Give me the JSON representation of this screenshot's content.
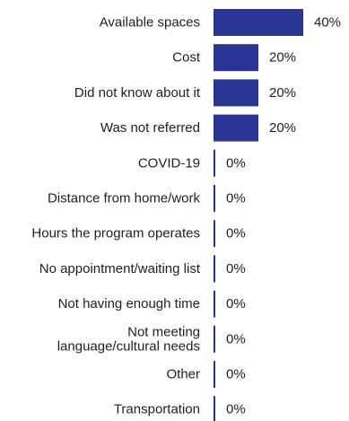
{
  "chart_data": {
    "type": "bar",
    "orientation": "horizontal",
    "categories": [
      [
        "Available spaces"
      ],
      [
        "Cost"
      ],
      [
        "Did not know about it"
      ],
      [
        "Was not referred"
      ],
      [
        "COVID-19"
      ],
      [
        "Distance from home/work"
      ],
      [
        "Hours the program operates"
      ],
      [
        "No appointment/waiting list"
      ],
      [
        "Not having enough time"
      ],
      [
        "Not meeting",
        "language/cultural needs"
      ],
      [
        "Other"
      ],
      [
        "Transportation"
      ]
    ],
    "values": [
      40,
      20,
      20,
      20,
      0,
      0,
      0,
      0,
      0,
      0,
      0,
      0
    ],
    "value_labels": [
      "40%",
      "20%",
      "20%",
      "20%",
      "0%",
      "0%",
      "0%",
      "0%",
      "0%",
      "0%",
      "0%",
      "0%"
    ],
    "xlim": [
      0,
      40
    ],
    "bar_color": "#283593",
    "axis_color": "#283593"
  }
}
